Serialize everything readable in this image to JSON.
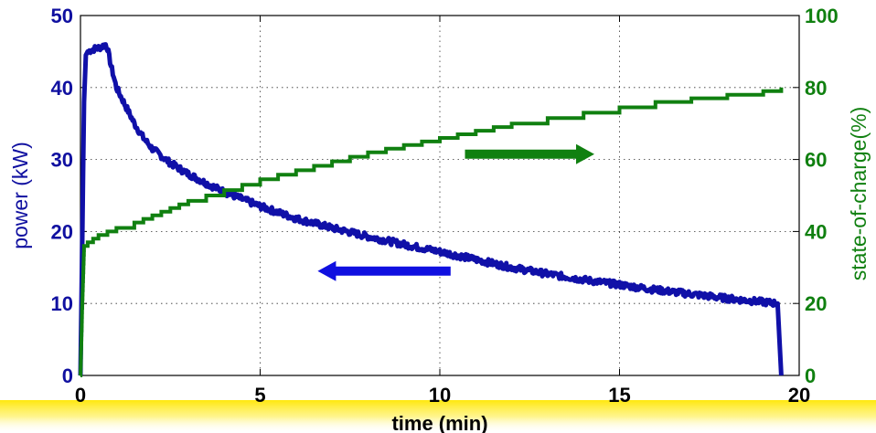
{
  "chart_data": {
    "type": "line",
    "xlabel": "time (min)",
    "ylabel_left": "power (kW)",
    "ylabel_right": "state-of-charge(%)",
    "xlim": [
      0,
      20
    ],
    "ylim_left": [
      0,
      50
    ],
    "ylim_right": [
      0,
      100
    ],
    "x_ticks": [
      "0",
      "5",
      "10",
      "15",
      "20"
    ],
    "y_left_ticks": [
      "0",
      "10",
      "20",
      "30",
      "40",
      "50"
    ],
    "y_right_ticks": [
      "0",
      "20",
      "40",
      "60",
      "80",
      "100"
    ],
    "grid": true,
    "series": [
      {
        "axis": "left",
        "color": "#1010a8",
        "x": [
          0,
          0.1,
          0.15,
          0.2,
          0.3,
          0.4,
          0.5,
          0.6,
          0.7,
          0.75,
          0.85,
          1.0,
          1.25,
          1.5,
          1.75,
          2.0,
          2.5,
          3.0,
          3.5,
          4.0,
          5.0,
          6.0,
          7.0,
          8.0,
          9.0,
          10.0,
          11.0,
          12.0,
          13.0,
          14.0,
          15.0,
          16.0,
          17.0,
          18.0,
          19.0,
          19.4,
          19.45,
          19.5
        ],
        "y": [
          0,
          38,
          44.5,
          45,
          45.2,
          45.4,
          45.5,
          45.7,
          46,
          45.5,
          43,
          40,
          37.5,
          35,
          33,
          31.5,
          29.5,
          28,
          26.7,
          25.5,
          23.5,
          21.8,
          20.5,
          19.3,
          18.2,
          17.2,
          16.1,
          15,
          14.1,
          13.3,
          12.6,
          11.9,
          11.3,
          10.7,
          10.2,
          10,
          5,
          0
        ]
      },
      {
        "axis": "right",
        "color": "#108010",
        "x": [
          0,
          0.05,
          0.1,
          0.2,
          0.5,
          1.0,
          1.5,
          2.0,
          2.5,
          3.0,
          3.5,
          4.0,
          5.0,
          6.0,
          7.0,
          8.0,
          9.0,
          10.0,
          11.0,
          12.0,
          13.0,
          14.0,
          15.0,
          16.0,
          17.0,
          18.0,
          19.0,
          19.5
        ],
        "y": [
          0,
          20,
          36,
          37,
          39,
          41,
          42.5,
          44.5,
          46.5,
          48.5,
          50,
          51.5,
          54.5,
          57,
          59.5,
          62,
          64,
          66,
          68,
          70,
          71.5,
          73,
          74.5,
          76,
          77,
          78,
          79,
          80
        ]
      }
    ],
    "annotations": [
      {
        "type": "arrow",
        "direction": "right",
        "color": "#108010",
        "x_from": 10.7,
        "x_to": 14.3,
        "y_right": 61.5
      },
      {
        "type": "arrow",
        "direction": "left",
        "color": "#1010e0",
        "x_from": 10.3,
        "x_to": 6.6,
        "y_left": 14.5
      }
    ]
  }
}
